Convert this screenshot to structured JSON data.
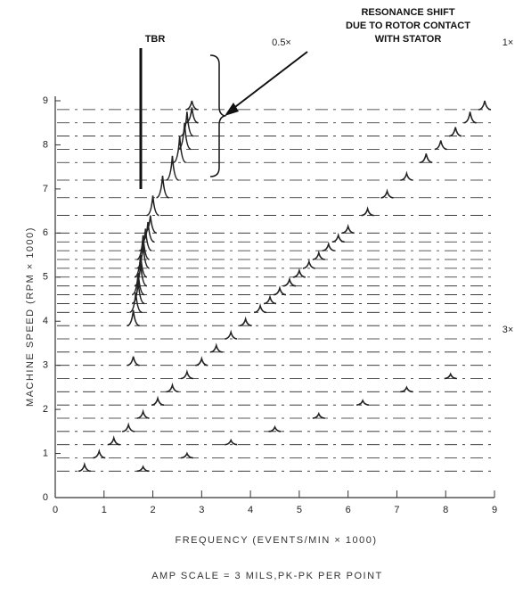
{
  "chart_data": {
    "type": "waterfall",
    "x_label": "FREQUENCY (EVENTS/MIN × 1000)",
    "y_label": "MACHINE SPEED (RPM × 1000)",
    "footnote": "AMP SCALE = 3 MILS,PK-PK PER POINT",
    "annotation_tbr": "TBR",
    "annotation_shift": [
      "RESONANCE SHIFT",
      "DUE TO ROTOR CONTACT",
      "WITH STATOR"
    ],
    "order_labels": [
      "0.5×",
      "1×",
      "3×"
    ],
    "xlim": [
      0,
      9
    ],
    "ylim": [
      0,
      9
    ],
    "xticks": [
      0,
      1,
      2,
      3,
      4,
      5,
      6,
      7,
      8,
      9
    ],
    "yticks": [
      0,
      1,
      2,
      3,
      4,
      5,
      6,
      7,
      8,
      9
    ],
    "color": "#222222",
    "traces": [
      {
        "speed": 0.6,
        "peaks": [
          [
            0.6,
            0.15
          ],
          [
            1.8,
            0.1
          ]
        ]
      },
      {
        "speed": 0.9,
        "peaks": [
          [
            0.9,
            0.15
          ],
          [
            2.7,
            0.1
          ]
        ]
      },
      {
        "speed": 1.2,
        "peaks": [
          [
            1.2,
            0.15
          ],
          [
            3.6,
            0.1
          ]
        ]
      },
      {
        "speed": 1.5,
        "peaks": [
          [
            1.5,
            0.15
          ],
          [
            4.5,
            0.1
          ]
        ]
      },
      {
        "speed": 1.8,
        "peaks": [
          [
            1.8,
            0.15
          ],
          [
            5.4,
            0.1
          ]
        ]
      },
      {
        "speed": 2.1,
        "peaks": [
          [
            2.1,
            0.15
          ],
          [
            6.3,
            0.1
          ]
        ]
      },
      {
        "speed": 2.4,
        "peaks": [
          [
            2.4,
            0.15
          ],
          [
            7.2,
            0.1
          ]
        ]
      },
      {
        "speed": 2.7,
        "peaks": [
          [
            2.7,
            0.15
          ],
          [
            8.1,
            0.1
          ]
        ]
      },
      {
        "speed": 3.0,
        "peaks": [
          [
            1.6,
            0.2
          ],
          [
            3.0,
            0.15
          ]
        ]
      },
      {
        "speed": 3.3,
        "peaks": [
          [
            3.3,
            0.15
          ]
        ]
      },
      {
        "speed": 3.6,
        "peaks": [
          [
            3.6,
            0.15
          ]
        ]
      },
      {
        "speed": 3.9,
        "peaks": [
          [
            1.6,
            0.35
          ],
          [
            3.9,
            0.15
          ]
        ]
      },
      {
        "speed": 4.2,
        "peaks": [
          [
            1.65,
            0.45
          ],
          [
            4.2,
            0.15
          ]
        ]
      },
      {
        "speed": 4.4,
        "peaks": [
          [
            1.7,
            0.5
          ],
          [
            4.4,
            0.15
          ]
        ]
      },
      {
        "speed": 4.6,
        "peaks": [
          [
            1.7,
            0.5
          ],
          [
            4.6,
            0.15
          ]
        ]
      },
      {
        "speed": 4.8,
        "peaks": [
          [
            1.75,
            0.5
          ],
          [
            4.8,
            0.15
          ]
        ]
      },
      {
        "speed": 5.0,
        "peaks": [
          [
            1.75,
            0.5
          ],
          [
            5.0,
            0.15
          ]
        ]
      },
      {
        "speed": 5.2,
        "peaks": [
          [
            1.8,
            0.55
          ],
          [
            5.2,
            0.15
          ]
        ]
      },
      {
        "speed": 5.4,
        "peaks": [
          [
            1.8,
            0.55
          ],
          [
            5.4,
            0.15
          ]
        ]
      },
      {
        "speed": 5.6,
        "peaks": [
          [
            1.85,
            0.5
          ],
          [
            5.6,
            0.15
          ]
        ]
      },
      {
        "speed": 5.8,
        "peaks": [
          [
            1.9,
            0.45
          ],
          [
            5.8,
            0.15
          ]
        ]
      },
      {
        "speed": 6.0,
        "peaks": [
          [
            1.95,
            0.4
          ],
          [
            6.0,
            0.15
          ]
        ]
      },
      {
        "speed": 6.4,
        "peaks": [
          [
            2.0,
            0.45
          ],
          [
            6.4,
            0.15
          ]
        ]
      },
      {
        "speed": 6.8,
        "peaks": [
          [
            2.2,
            0.5
          ],
          [
            6.8,
            0.15
          ]
        ]
      },
      {
        "speed": 7.2,
        "peaks": [
          [
            2.4,
            0.55
          ],
          [
            7.2,
            0.15
          ]
        ]
      },
      {
        "speed": 7.6,
        "peaks": [
          [
            2.55,
            0.6
          ],
          [
            7.6,
            0.2
          ]
        ]
      },
      {
        "speed": 7.9,
        "peaks": [
          [
            2.65,
            0.6
          ],
          [
            7.9,
            0.2
          ]
        ]
      },
      {
        "speed": 8.2,
        "peaks": [
          [
            2.7,
            0.55
          ],
          [
            8.2,
            0.2
          ]
        ]
      },
      {
        "speed": 8.5,
        "peaks": [
          [
            2.8,
            0.35
          ],
          [
            8.5,
            0.25
          ]
        ]
      },
      {
        "speed": 8.8,
        "peaks": [
          [
            2.8,
            0.2
          ],
          [
            8.8,
            0.2
          ]
        ]
      }
    ]
  }
}
